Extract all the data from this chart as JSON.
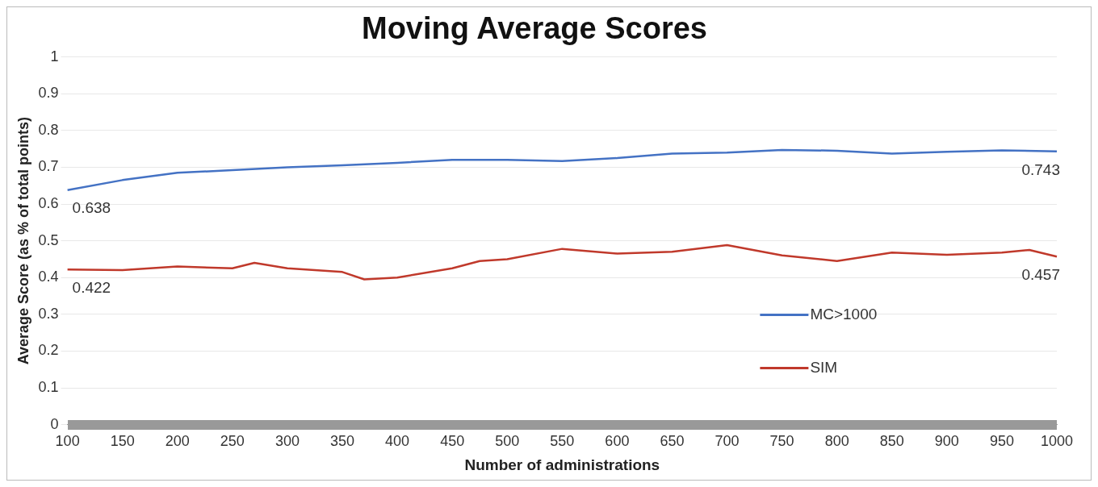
{
  "chart_data": {
    "type": "line",
    "title": "Moving Average Scores",
    "xlabel": "Number of administrations",
    "ylabel": "Average Score (as % of total points)",
    "xlim": [
      100,
      1000
    ],
    "xticks": [
      100,
      150,
      200,
      250,
      300,
      350,
      400,
      450,
      500,
      550,
      600,
      650,
      700,
      750,
      800,
      850,
      900,
      950,
      1000
    ],
    "ylim": [
      0,
      1
    ],
    "yticks": [
      0,
      0.1,
      0.2,
      0.3,
      0.4,
      0.5,
      0.6,
      0.7,
      0.8,
      0.9,
      1
    ],
    "grid": "y",
    "legend": "bottom right",
    "marker": "none",
    "line_style": "solid",
    "series": [
      {
        "name": "MC>1000",
        "color": "#4472c4",
        "x": [
          100,
          150,
          200,
          250,
          300,
          350,
          400,
          450,
          500,
          550,
          600,
          650,
          700,
          750,
          800,
          850,
          900,
          950,
          1000
        ],
        "value_labels": [
          "0.638",
          null,
          null,
          null,
          null,
          null,
          null,
          null,
          null,
          null,
          null,
          null,
          null,
          null,
          null,
          null,
          null,
          null,
          "0.743"
        ],
        "values": [
          0.638,
          0.665,
          0.685,
          0.692,
          0.7,
          0.705,
          0.712,
          0.72,
          0.72,
          0.717,
          0.725,
          0.737,
          0.74,
          0.747,
          0.745,
          0.737,
          0.742,
          0.746,
          0.743
        ]
      },
      {
        "name": "SIM",
        "color": "#c0392b",
        "x": [
          100,
          150,
          200,
          250,
          270,
          300,
          350,
          370,
          400,
          450,
          475,
          500,
          550,
          600,
          650,
          700,
          750,
          800,
          850,
          900,
          950,
          975,
          1000
        ],
        "value_labels": [
          "0.422",
          null,
          null,
          null,
          null,
          null,
          null,
          null,
          null,
          null,
          null,
          null,
          null,
          null,
          null,
          null,
          null,
          null,
          null,
          null,
          null,
          null,
          "0.457"
        ],
        "values": [
          0.422,
          0.42,
          0.43,
          0.425,
          0.44,
          0.425,
          0.415,
          0.395,
          0.4,
          0.425,
          0.445,
          0.45,
          0.478,
          0.465,
          0.47,
          0.488,
          0.46,
          0.445,
          0.468,
          0.462,
          0.468,
          0.475,
          0.457
        ]
      }
    ]
  }
}
